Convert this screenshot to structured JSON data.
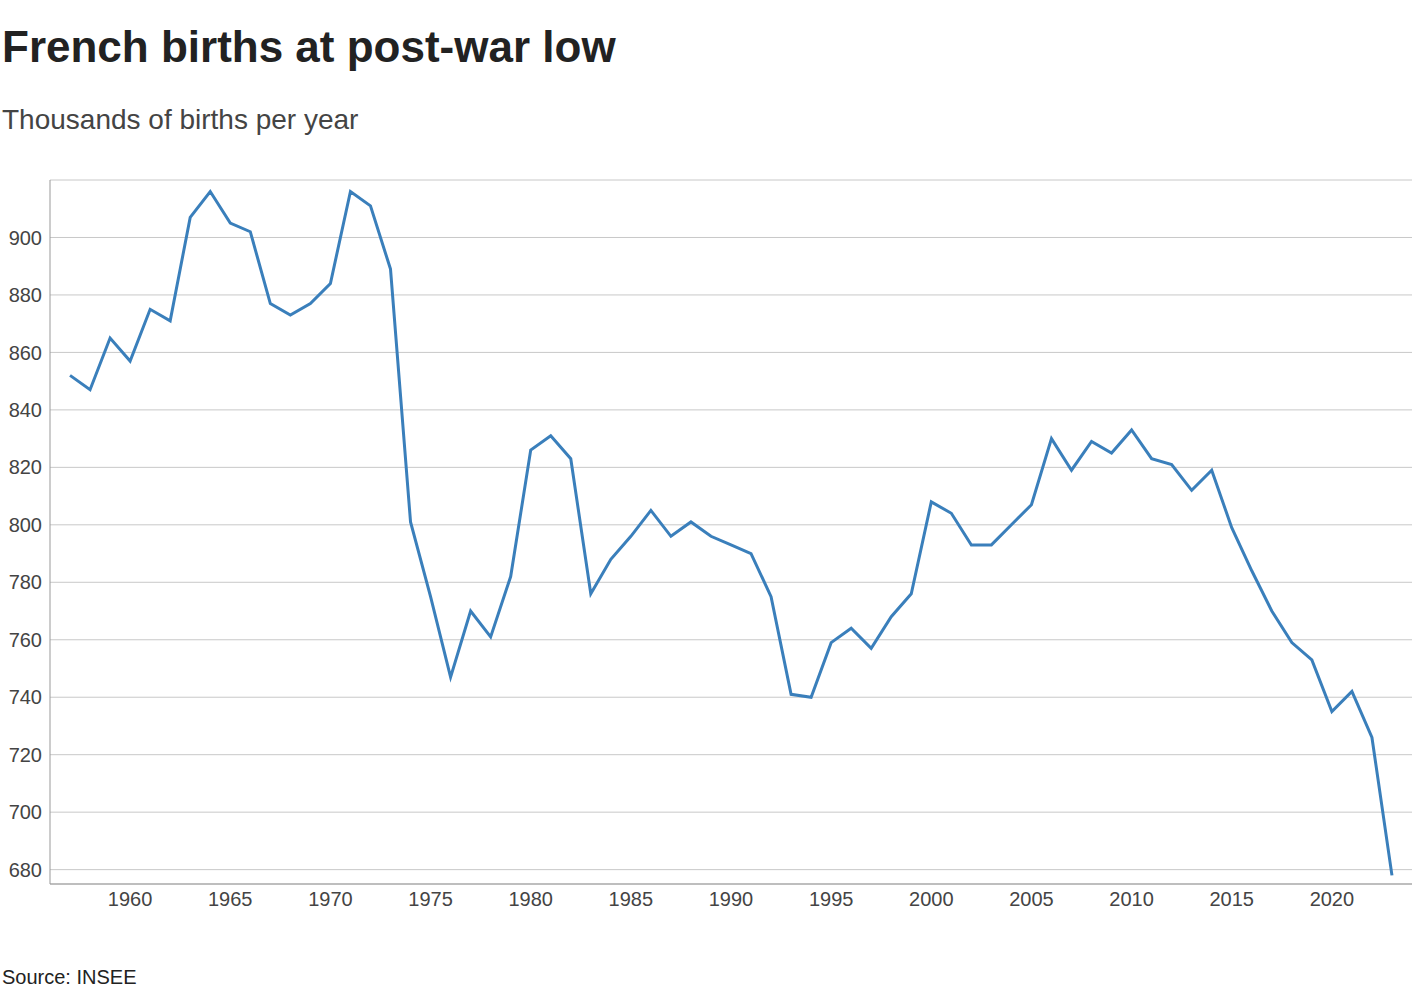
{
  "chart_data": {
    "type": "line",
    "title": "French births at post-war low",
    "subtitle": "Thousands of births per year",
    "source": "Source: INSEE",
    "x": [
      1957,
      1958,
      1959,
      1960,
      1961,
      1962,
      1963,
      1964,
      1965,
      1966,
      1967,
      1968,
      1969,
      1970,
      1971,
      1972,
      1973,
      1974,
      1975,
      1976,
      1977,
      1978,
      1979,
      1980,
      1981,
      1982,
      1983,
      1984,
      1985,
      1986,
      1987,
      1988,
      1989,
      1990,
      1991,
      1992,
      1993,
      1994,
      1995,
      1996,
      1997,
      1998,
      1999,
      2000,
      2001,
      2002,
      2003,
      2004,
      2005,
      2006,
      2007,
      2008,
      2009,
      2010,
      2011,
      2012,
      2013,
      2014,
      2015,
      2016,
      2017,
      2018,
      2019,
      2020,
      2021,
      2022,
      2023
    ],
    "values": [
      852,
      847,
      865,
      857,
      875,
      871,
      907,
      916,
      905,
      902,
      877,
      873,
      877,
      884,
      916,
      911,
      889,
      801,
      775,
      747,
      770,
      761,
      782,
      826,
      831,
      823,
      776,
      788,
      796,
      805,
      796,
      801,
      796,
      793,
      790,
      775,
      741,
      740,
      759,
      764,
      757,
      768,
      776,
      808,
      804,
      793,
      793,
      800,
      807,
      830,
      819,
      829,
      825,
      833,
      823,
      821,
      812,
      819,
      799,
      784,
      770,
      759,
      753,
      735,
      742,
      726,
      678
    ],
    "color": "#3a7fbb",
    "xlim": [
      1956,
      2024
    ],
    "xticks": [
      1960,
      1965,
      1970,
      1975,
      1980,
      1985,
      1990,
      1995,
      2000,
      2005,
      2010,
      2015,
      2020
    ],
    "ylim": [
      675,
      920
    ],
    "yticks": [
      680,
      700,
      720,
      740,
      760,
      780,
      800,
      820,
      840,
      860,
      880,
      900
    ],
    "grid": true
  }
}
